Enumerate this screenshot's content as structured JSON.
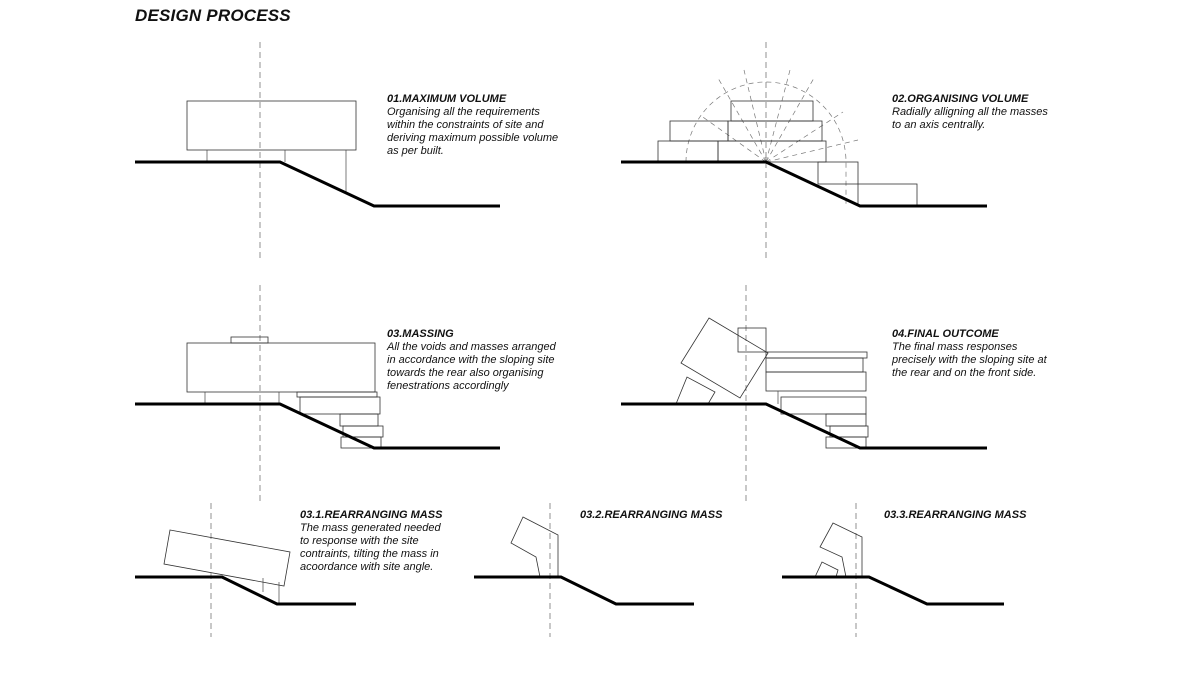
{
  "page_title": "DESIGN PROCESS",
  "steps": [
    {
      "title": "01.MAXIMUM VOLUME",
      "description": "Organising all the requirements\nwithin the constraints of site and\nderiving maximum possible volume\nas per built."
    },
    {
      "title": "02.ORGANISING VOLUME",
      "description": "Radially alligning all the masses\nto an axis centrally."
    },
    {
      "title": "03.MASSING",
      "description": "All the voids and masses arranged\nin accordance with the sloping site\ntowards the rear also organising\nfenestrations accordingly"
    },
    {
      "title": "04.FINAL OUTCOME",
      "description": "The final mass responses\nprecisely with the sloping site at\nthe rear and on the front side."
    },
    {
      "title": "03.1.REARRANGING MASS",
      "description": "The mass generated needed\nto response with the site\ncontraints, tilting the mass in\nacoordance with site angle."
    },
    {
      "title": "03.2.REARRANGING MASS",
      "description": ""
    },
    {
      "title": "03.3.REARRANGING MASS",
      "description": ""
    }
  ]
}
